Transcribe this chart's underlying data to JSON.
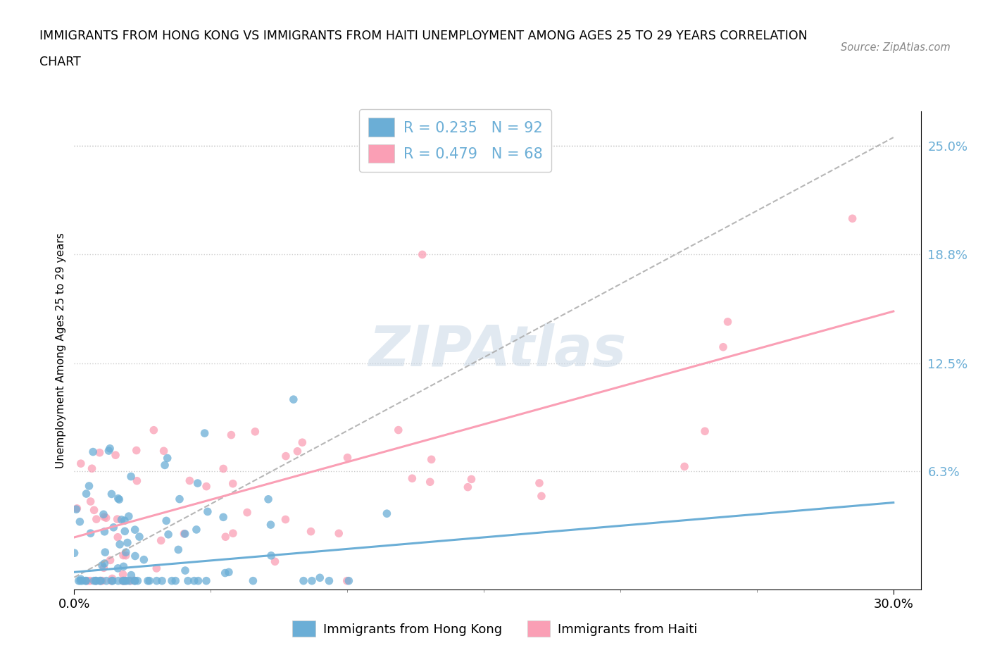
{
  "title_line1": "IMMIGRANTS FROM HONG KONG VS IMMIGRANTS FROM HAITI UNEMPLOYMENT AMONG AGES 25 TO 29 YEARS CORRELATION",
  "title_line2": "CHART",
  "source_text": "Source: ZipAtlas.com",
  "ylabel": "Unemployment Among Ages 25 to 29 years",
  "hk_color": "#6baed6",
  "haiti_color": "#fa9fb5",
  "hk_R": 0.235,
  "hk_N": 92,
  "haiti_R": 0.479,
  "haiti_N": 68,
  "xlim": [
    0.0,
    0.31
  ],
  "ylim": [
    -0.005,
    0.27
  ],
  "ytick_right_labels": [
    "6.3%",
    "12.5%",
    "18.8%",
    "25.0%"
  ],
  "ytick_right_vals": [
    0.063,
    0.125,
    0.188,
    0.25
  ],
  "hk_trend": [
    0.005,
    0.045
  ],
  "haiti_trend_start": 0.025,
  "haiti_trend_end": 0.155,
  "dashed_trend": [
    0.002,
    0.255
  ],
  "watermark_text": "ZIPAtlas",
  "watermark_color": "#c8d8e8",
  "legend_label_hk": "R = 0.235   N = 92",
  "legend_label_haiti": "R = 0.479   N = 68",
  "bottom_legend_hk": "Immigrants from Hong Kong",
  "bottom_legend_haiti": "Immigrants from Haiti"
}
